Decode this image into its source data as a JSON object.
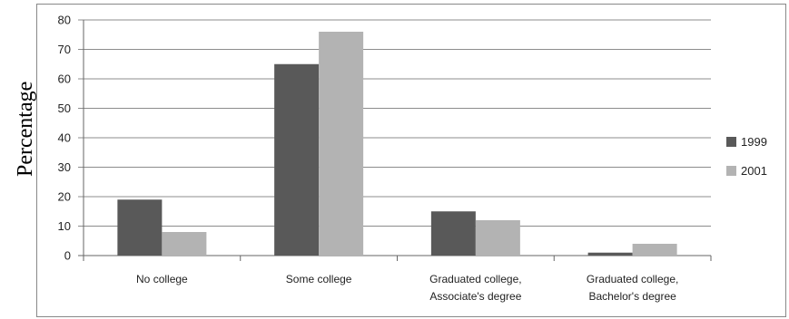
{
  "chart_data": {
    "type": "bar",
    "title": "",
    "xlabel": "",
    "ylabel": "Percentage",
    "ylim": [
      0,
      80
    ],
    "yticks": [
      0,
      10,
      20,
      30,
      40,
      50,
      60,
      70,
      80
    ],
    "grid": true,
    "legend_position": "right",
    "categories": [
      [
        "No college"
      ],
      [
        "Some college"
      ],
      [
        "Graduated college,",
        "Associate's degree"
      ],
      [
        "Graduated college,",
        "Bachelor's degree"
      ]
    ],
    "series": [
      {
        "name": "1999",
        "color": "#595959",
        "values": [
          19,
          65,
          15,
          1
        ]
      },
      {
        "name": "2001",
        "color": "#b3b3b3",
        "values": [
          8,
          76,
          12,
          4
        ]
      }
    ]
  }
}
